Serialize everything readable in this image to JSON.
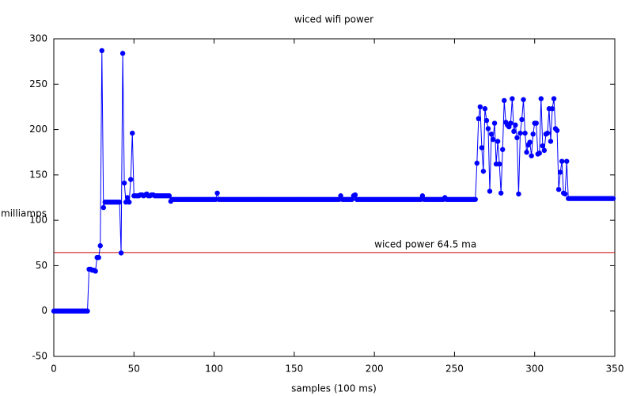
{
  "chart_data": {
    "type": "line",
    "title": "wiced wifi power",
    "x_label": "samples (100 ms)",
    "y_label": "milliamps",
    "xlim": [
      0,
      350
    ],
    "ylim": [
      -50,
      300
    ],
    "xticks": [
      0,
      50,
      100,
      150,
      200,
      250,
      300,
      350
    ],
    "yticks": [
      -50,
      0,
      50,
      100,
      150,
      200,
      250,
      300
    ],
    "grid": false,
    "reference_line": {
      "value": 64.5,
      "label": "wiced power 64.5 ma",
      "color": "#cc0000"
    },
    "x": [
      0,
      1,
      2,
      3,
      4,
      5,
      6,
      7,
      8,
      9,
      10,
      11,
      12,
      13,
      14,
      15,
      16,
      17,
      18,
      19,
      20,
      21,
      22,
      23,
      24,
      25,
      26,
      27,
      28,
      29,
      30,
      31,
      32,
      33,
      34,
      35,
      36,
      37,
      38,
      39,
      40,
      41,
      42,
      43,
      44,
      45,
      46,
      47,
      48,
      49,
      50,
      51,
      52,
      53,
      54,
      55,
      56,
      57,
      58,
      59,
      60,
      61,
      62,
      63,
      64,
      65,
      66,
      67,
      68,
      69,
      70,
      71,
      72,
      73,
      74,
      75,
      76,
      77,
      78,
      79,
      80,
      81,
      82,
      83,
      84,
      85,
      86,
      87,
      88,
      89,
      90,
      91,
      92,
      93,
      94,
      95,
      96,
      97,
      98,
      99,
      100,
      101,
      102,
      103,
      104,
      105,
      106,
      107,
      108,
      109,
      110,
      111,
      112,
      113,
      114,
      115,
      116,
      117,
      118,
      119,
      120,
      121,
      122,
      123,
      124,
      125,
      126,
      127,
      128,
      129,
      130,
      131,
      132,
      133,
      134,
      135,
      136,
      137,
      138,
      139,
      140,
      141,
      142,
      143,
      144,
      145,
      146,
      147,
      148,
      149,
      150,
      151,
      152,
      153,
      154,
      155,
      156,
      157,
      158,
      159,
      160,
      161,
      162,
      163,
      164,
      165,
      166,
      167,
      168,
      169,
      170,
      171,
      172,
      173,
      174,
      175,
      176,
      177,
      178,
      179,
      180,
      181,
      182,
      183,
      184,
      185,
      186,
      187,
      188,
      189,
      190,
      191,
      192,
      193,
      194,
      195,
      196,
      197,
      198,
      199,
      200,
      201,
      202,
      203,
      204,
      205,
      206,
      207,
      208,
      209,
      210,
      211,
      212,
      213,
      214,
      215,
      216,
      217,
      218,
      219,
      220,
      221,
      222,
      223,
      224,
      225,
      226,
      227,
      228,
      229,
      230,
      231,
      232,
      233,
      234,
      235,
      236,
      237,
      238,
      239,
      240,
      241,
      242,
      243,
      244,
      245,
      246,
      247,
      248,
      249,
      250,
      251,
      252,
      253,
      254,
      255,
      256,
      257,
      258,
      259,
      260,
      261,
      262,
      263,
      264,
      265,
      266,
      267,
      268,
      269,
      270,
      271,
      272,
      273,
      274,
      275,
      276,
      277,
      278,
      279,
      280,
      281,
      282,
      283,
      284,
      285,
      286,
      287,
      288,
      289,
      290,
      291,
      292,
      293,
      294,
      295,
      296,
      297,
      298,
      299,
      300,
      301,
      302,
      303,
      304,
      305,
      306,
      307,
      308,
      309,
      310,
      311,
      312,
      313,
      314,
      315,
      316,
      317,
      318,
      319,
      320,
      321,
      322,
      323,
      324,
      325,
      326,
      327,
      328,
      329,
      330,
      331,
      332,
      333,
      334,
      335,
      336,
      337,
      338,
      339,
      340,
      341,
      342,
      343,
      344,
      345,
      346,
      347,
      348,
      349
    ],
    "series": [
      {
        "color": "#0000ff",
        "values": [
          0,
          0,
          0,
          0,
          0,
          0,
          0,
          0,
          0,
          0,
          0,
          0,
          0,
          0,
          0,
          0,
          0,
          0,
          0,
          0,
          0,
          0,
          46,
          46,
          45,
          45,
          44,
          59,
          59,
          72,
          287,
          114,
          120,
          120,
          120,
          120,
          120,
          120,
          120,
          120,
          120,
          120,
          64,
          284,
          141,
          120,
          125,
          120,
          145,
          196,
          127,
          127,
          127,
          127,
          128,
          128,
          127,
          128,
          129,
          127,
          127,
          128,
          128,
          127,
          127,
          127,
          127,
          127,
          127,
          127,
          127,
          127,
          127,
          121,
          123,
          123,
          123,
          123,
          123,
          123,
          123,
          123,
          123,
          123,
          123,
          123,
          123,
          123,
          123,
          123,
          123,
          123,
          123,
          123,
          123,
          123,
          123,
          123,
          123,
          123,
          123,
          123,
          130,
          123,
          123,
          123,
          123,
          123,
          123,
          123,
          123,
          123,
          123,
          123,
          123,
          123,
          123,
          123,
          123,
          123,
          123,
          123,
          123,
          123,
          123,
          123,
          123,
          123,
          123,
          123,
          123,
          123,
          123,
          123,
          123,
          123,
          123,
          123,
          123,
          123,
          123,
          123,
          123,
          123,
          123,
          123,
          123,
          123,
          123,
          123,
          123,
          123,
          123,
          123,
          123,
          123,
          123,
          123,
          123,
          123,
          123,
          123,
          123,
          123,
          123,
          123,
          123,
          123,
          123,
          123,
          123,
          123,
          123,
          123,
          123,
          123,
          123,
          123,
          123,
          127,
          123,
          123,
          123,
          123,
          123,
          123,
          123,
          127,
          128,
          123,
          123,
          123,
          123,
          123,
          123,
          123,
          123,
          123,
          123,
          123,
          123,
          123,
          123,
          123,
          123,
          123,
          123,
          123,
          123,
          123,
          123,
          123,
          123,
          123,
          123,
          123,
          123,
          123,
          123,
          123,
          123,
          123,
          123,
          123,
          123,
          123,
          123,
          123,
          123,
          123,
          127,
          123,
          123,
          123,
          123,
          123,
          123,
          123,
          123,
          123,
          123,
          123,
          123,
          123,
          125,
          123,
          123,
          123,
          123,
          123,
          123,
          123,
          123,
          123,
          123,
          123,
          123,
          123,
          123,
          123,
          123,
          123,
          123,
          123,
          163,
          212,
          225,
          180,
          154,
          223,
          210,
          201,
          132,
          195,
          189,
          207,
          162,
          187,
          162,
          130,
          178,
          232,
          208,
          205,
          203,
          207,
          234,
          198,
          205,
          191,
          129,
          196,
          211,
          233,
          196,
          175,
          183,
          186,
          171,
          195,
          207,
          207,
          173,
          174,
          234,
          182,
          177,
          195,
          196,
          223,
          187,
          223,
          234,
          201,
          199,
          134,
          153,
          165,
          130,
          129,
          165,
          124,
          124,
          124,
          124,
          124,
          124,
          124,
          124,
          124,
          124,
          124,
          124,
          124,
          124,
          124,
          124,
          124,
          124,
          124,
          124,
          124,
          124,
          124,
          124,
          124,
          124,
          124,
          124,
          124
        ]
      }
    ]
  }
}
